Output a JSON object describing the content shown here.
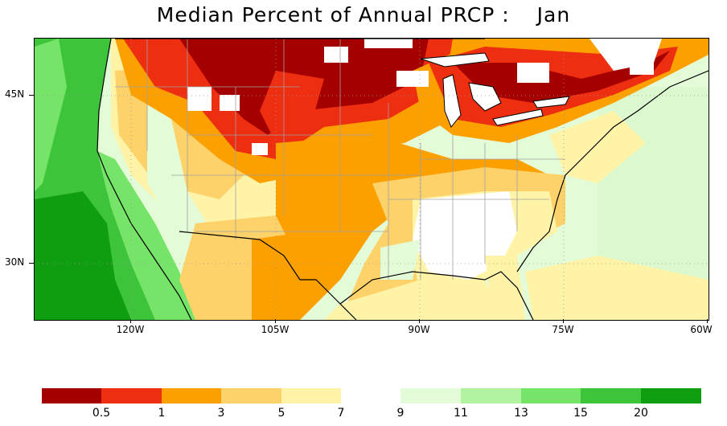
{
  "title": {
    "main": "Median Percent of Annual PRCP :",
    "month": "Jan"
  },
  "map": {
    "latitude_labels": [
      "45N",
      "30N"
    ],
    "longitude_labels": [
      "120W",
      "105W",
      "90W",
      "75W",
      "60W"
    ]
  },
  "legend": {
    "labels": [
      "0.5",
      "1",
      "3",
      "5",
      "7",
      "9",
      "11",
      "13",
      "15",
      "20"
    ],
    "colors": [
      "#a50000",
      "#ee2e10",
      "#fca000",
      "#fdd26a",
      "#fff3a8",
      "#e4fbd8",
      "#b2f3a2",
      "#76e468",
      "#3ec43a",
      "#0f9e10"
    ]
  },
  "colors": {
    "dry_dark": "#a50000",
    "dry_red": "#ee2e10",
    "orange": "#fca000",
    "light_orange": "#fdd26a",
    "pale_yellow": "#fff3a8",
    "pale_green": "#e4fbd8",
    "light_green": "#b2f3a2",
    "green": "#76e468",
    "mid_green": "#3ec43a",
    "dark_green": "#0f9e10",
    "no_data": "#ffffff",
    "state_border": "#a0a0a0",
    "coast": "#000000"
  }
}
